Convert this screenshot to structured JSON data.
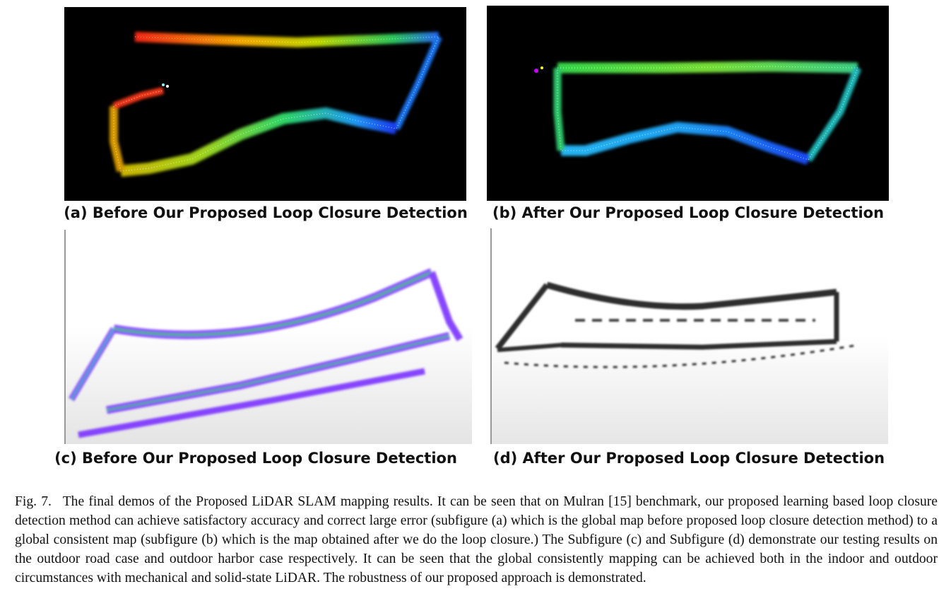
{
  "subfigures": [
    {
      "label": "(a) Before Our Proposed Loop Closure Detection"
    },
    {
      "label": "(b) After Our Proposed Loop Closure Detection"
    },
    {
      "label": "(c) Before Our Proposed Loop Closure Detection"
    },
    {
      "label": "(d) After Our Proposed Loop Closure Detection"
    }
  ],
  "caption": {
    "label": "Fig. 7.",
    "text": "The final demos of the Proposed LiDAR SLAM mapping results. It can be seen that on Mulran [15] benchmark, our proposed learning based loop closure detection method can achieve satisfactory accuracy and correct large error (subfigure (a) which is the global map before proposed loop closure detection method) to a global consistent map (subfigure (b) which is the map obtained after we do the loop closure.) The Subfigure (c) and Subfigure (d) demonstrate our testing results on the outdoor road case and outdoor harbor case respectively. It can be seen that the global consistently mapping can be achieved both in the indoor and outdoor circumstances with mechanical and solid-state LiDAR. The robustness of our proposed approach is demonstrated."
  },
  "colors": {
    "map_background_dark": "#000000",
    "map_background_light": "#ffffff",
    "trajectory_red": "#ff2a1a",
    "trajectory_yellow": "#e8d400",
    "trajectory_green": "#38e84a",
    "trajectory_blue": "#1f5cff",
    "pointcloud_purple": "#7a32ff",
    "pointcloud_black": "#111111"
  }
}
